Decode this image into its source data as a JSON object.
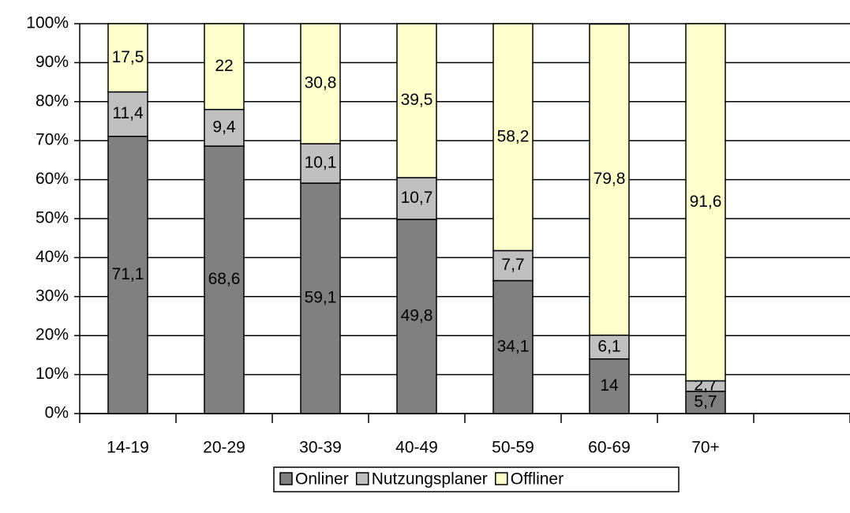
{
  "chart_data": {
    "type": "stacked_bar",
    "categories": [
      "14-19",
      "20-29",
      "30-39",
      "40-49",
      "50-59",
      "60-69",
      "70+",
      null
    ],
    "series": [
      {
        "name": "Onliner",
        "color": "#808080",
        "values": [
          71.1,
          68.6,
          59.1,
          49.8,
          34.1,
          14,
          5.7,
          null
        ],
        "value_labels": [
          "71,1",
          "68,6",
          "59,1",
          "49,8",
          "34,1",
          "14",
          "5,7",
          null
        ]
      },
      {
        "name": "Nutzungsplaner",
        "color": "#c0c0c0",
        "values": [
          11.4,
          9.4,
          10.1,
          10.7,
          7.7,
          6.1,
          2.7,
          null
        ],
        "value_labels": [
          "11,4",
          "9,4",
          "10,1",
          "10,7",
          "7,7",
          "6,1",
          "2,7",
          null
        ]
      },
      {
        "name": "Offliner",
        "color": "#ffffcc",
        "values": [
          17.5,
          22,
          30.8,
          39.5,
          58.2,
          79.8,
          91.6,
          null
        ],
        "value_labels": [
          "17,5",
          "22",
          "30,8",
          "39,5",
          "58,2",
          "79,8",
          "91,6",
          null
        ]
      }
    ],
    "ylim": [
      0,
      100
    ],
    "yticks": [
      {
        "value": 0,
        "label": "0%"
      },
      {
        "value": 10,
        "label": "10%"
      },
      {
        "value": 20,
        "label": "20%"
      },
      {
        "value": 30,
        "label": "30%"
      },
      {
        "value": 40,
        "label": "40%"
      },
      {
        "value": 50,
        "label": "50%"
      },
      {
        "value": 60,
        "label": "60%"
      },
      {
        "value": 70,
        "label": "70%"
      },
      {
        "value": 80,
        "label": "80%"
      },
      {
        "value": 90,
        "label": "90%"
      },
      {
        "value": 100,
        "label": "100%"
      }
    ],
    "grid": true,
    "legend": "bottom"
  }
}
